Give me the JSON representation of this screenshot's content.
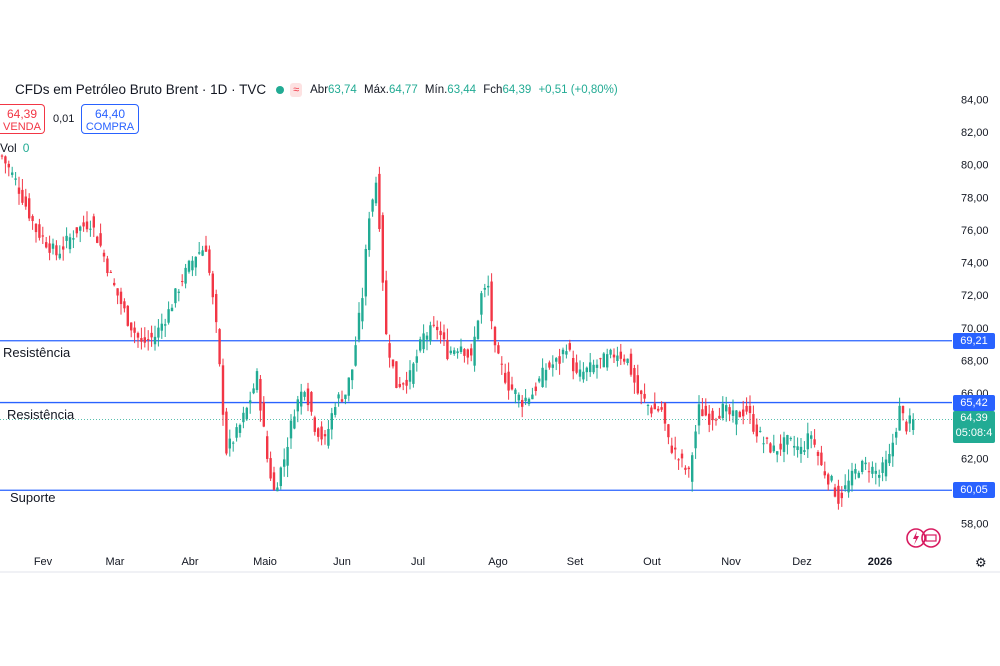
{
  "header": {
    "title": "CFDs em Petróleo Bruto Brent · 1D · TVC",
    "wave_badge": "≈",
    "ohlc": [
      {
        "k": "Abr",
        "v": "63,74"
      },
      {
        "k": "Máx.",
        "v": "64,77"
      },
      {
        "k": "Mín.",
        "v": "63,44"
      },
      {
        "k": "Fch",
        "v": "64,39"
      }
    ],
    "change": "+0,51 (+0,80%)"
  },
  "sell": {
    "price": "64,39",
    "label": "VENDA"
  },
  "spread": "0,01",
  "buy": {
    "price": "64,40",
    "label": "COMPRA"
  },
  "volume": {
    "label": "Vol",
    "value": "0"
  },
  "levels": [
    {
      "label": "Resistência",
      "value": 69.21,
      "tag": "69,21"
    },
    {
      "label": "Resistência",
      "value": 65.42,
      "tag": "65,42"
    },
    {
      "label": "Suporte",
      "value": 60.05,
      "tag": "60,05"
    }
  ],
  "current": {
    "price": "64,39",
    "countdown": "05:08:4"
  },
  "colors": {
    "up": "#22ab94",
    "down": "#f23645",
    "level": "#2962ff"
  },
  "chart_data": {
    "type": "candlestick",
    "yaxis": {
      "min": 57,
      "max": 85,
      "ticks": [
        58,
        60,
        62,
        64,
        66,
        68,
        70,
        72,
        74,
        76,
        78,
        80,
        82,
        84
      ],
      "tick_labels": [
        "58,00",
        "60,00",
        "62,00",
        "64,00",
        "66,00",
        "68,00",
        "70,00",
        "72,00",
        "74,00",
        "76,00",
        "78,00",
        "80,00",
        "82,00",
        "84,00"
      ]
    },
    "xaxis": {
      "labels": [
        "Fev",
        "Mar",
        "Abr",
        "Maio",
        "Jun",
        "Jul",
        "Ago",
        "Set",
        "Out",
        "Nov",
        "Dez",
        "2026"
      ]
    },
    "anchors": [
      [
        0,
        80.5
      ],
      [
        4,
        79.0
      ],
      [
        10,
        76.0
      ],
      [
        16,
        74.5
      ],
      [
        22,
        76.0
      ],
      [
        26,
        76.5
      ],
      [
        29,
        75.0
      ],
      [
        33,
        72.5
      ],
      [
        37,
        70.5
      ],
      [
        41,
        69.0
      ],
      [
        45,
        69.5
      ],
      [
        49,
        71.0
      ],
      [
        53,
        73.0
      ],
      [
        57,
        74.5
      ],
      [
        60,
        75.0
      ],
      [
        63,
        70.0
      ],
      [
        66,
        62.5
      ],
      [
        69,
        63.5
      ],
      [
        72,
        65.0
      ],
      [
        75,
        67.0
      ],
      [
        78,
        62.0
      ],
      [
        80,
        60.0
      ],
      [
        83,
        62.0
      ],
      [
        86,
        65.0
      ],
      [
        89,
        66.5
      ],
      [
        92,
        64.0
      ],
      [
        95,
        63.0
      ],
      [
        98,
        65.5
      ],
      [
        101,
        66.0
      ],
      [
        103,
        67.5
      ],
      [
        106,
        72.0
      ],
      [
        108,
        77.0
      ],
      [
        110,
        79.0
      ],
      [
        111,
        76.5
      ],
      [
        113,
        69.5
      ],
      [
        116,
        66.5
      ],
      [
        120,
        67.0
      ],
      [
        124,
        69.5
      ],
      [
        128,
        70.0
      ],
      [
        131,
        68.5
      ],
      [
        135,
        69.0
      ],
      [
        138,
        68.0
      ],
      [
        141,
        72.0
      ],
      [
        143,
        72.5
      ],
      [
        145,
        68.5
      ],
      [
        149,
        66.5
      ],
      [
        153,
        65.5
      ],
      [
        156,
        66.0
      ],
      [
        160,
        67.5
      ],
      [
        164,
        68.0
      ],
      [
        166,
        69.0
      ],
      [
        169,
        67.0
      ],
      [
        173,
        67.5
      ],
      [
        177,
        68.0
      ],
      [
        181,
        68.5
      ],
      [
        184,
        68.0
      ],
      [
        187,
        66.0
      ],
      [
        191,
        65.0
      ],
      [
        194,
        65.0
      ],
      [
        196,
        63.0
      ],
      [
        199,
        62.0
      ],
      [
        202,
        61.0
      ],
      [
        205,
        65.0
      ],
      [
        208,
        64.5
      ],
      [
        212,
        65.0
      ],
      [
        215,
        64.5
      ],
      [
        219,
        65.0
      ],
      [
        221,
        64.0
      ],
      [
        224,
        63.0
      ],
      [
        227,
        62.5
      ],
      [
        231,
        63.0
      ],
      [
        235,
        62.5
      ],
      [
        238,
        63.5
      ],
      [
        241,
        61.5
      ],
      [
        244,
        60.5
      ],
      [
        246,
        59.5
      ],
      [
        249,
        60.5
      ],
      [
        252,
        61.5
      ],
      [
        255,
        61.5
      ],
      [
        258,
        61.0
      ],
      [
        261,
        62.0
      ],
      [
        264,
        65.0
      ],
      [
        266,
        64.0
      ],
      [
        268,
        64.39
      ]
    ],
    "last": {
      "open": 63.74,
      "high": 64.77,
      "low": 63.44,
      "close": 64.39
    }
  }
}
